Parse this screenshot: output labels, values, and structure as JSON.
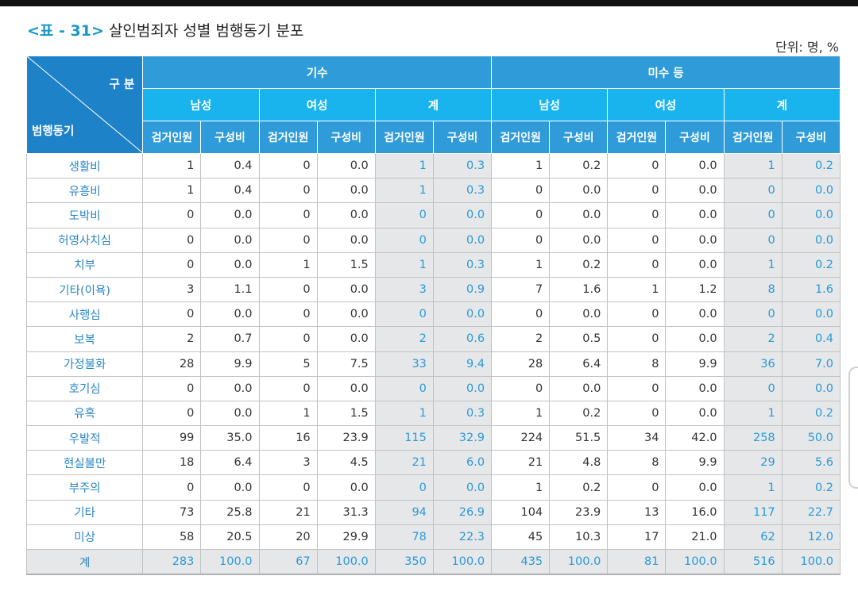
{
  "title": {
    "prefix": "<표 - 31>",
    "text": "살인범죄자 성별 범행동기 분포"
  },
  "unit": "단위: 명, %",
  "header": {
    "corner_top": "구 분",
    "corner_bottom": "범행동기",
    "groups": [
      "기수",
      "미수 등"
    ],
    "genders": [
      "남성",
      "여성",
      "계"
    ],
    "metric_count": "검거인원",
    "metric_ratio": "구성비"
  },
  "rows": [
    {
      "label": "생활비",
      "values": [
        "1",
        "0.4",
        "0",
        "0.0",
        "1",
        "0.3",
        "1",
        "0.2",
        "0",
        "0.0",
        "1",
        "0.2"
      ]
    },
    {
      "label": "유흥비",
      "values": [
        "1",
        "0.4",
        "0",
        "0.0",
        "1",
        "0.3",
        "0",
        "0.0",
        "0",
        "0.0",
        "0",
        "0.0"
      ]
    },
    {
      "label": "도박비",
      "values": [
        "0",
        "0.0",
        "0",
        "0.0",
        "0",
        "0.0",
        "0",
        "0.0",
        "0",
        "0.0",
        "0",
        "0.0"
      ]
    },
    {
      "label": "허영사치심",
      "values": [
        "0",
        "0.0",
        "0",
        "0.0",
        "0",
        "0.0",
        "0",
        "0.0",
        "0",
        "0.0",
        "0",
        "0.0"
      ]
    },
    {
      "label": "치부",
      "values": [
        "0",
        "0.0",
        "1",
        "1.5",
        "1",
        "0.3",
        "1",
        "0.2",
        "0",
        "0.0",
        "1",
        "0.2"
      ]
    },
    {
      "label": "기타(이욕)",
      "values": [
        "3",
        "1.1",
        "0",
        "0.0",
        "3",
        "0.9",
        "7",
        "1.6",
        "1",
        "1.2",
        "8",
        "1.6"
      ]
    },
    {
      "label": "사행심",
      "values": [
        "0",
        "0.0",
        "0",
        "0.0",
        "0",
        "0.0",
        "0",
        "0.0",
        "0",
        "0.0",
        "0",
        "0.0"
      ]
    },
    {
      "label": "보복",
      "values": [
        "2",
        "0.7",
        "0",
        "0.0",
        "2",
        "0.6",
        "2",
        "0.5",
        "0",
        "0.0",
        "2",
        "0.4"
      ]
    },
    {
      "label": "가정불화",
      "values": [
        "28",
        "9.9",
        "5",
        "7.5",
        "33",
        "9.4",
        "28",
        "6.4",
        "8",
        "9.9",
        "36",
        "7.0"
      ]
    },
    {
      "label": "호기심",
      "values": [
        "0",
        "0.0",
        "0",
        "0.0",
        "0",
        "0.0",
        "0",
        "0.0",
        "0",
        "0.0",
        "0",
        "0.0"
      ]
    },
    {
      "label": "유혹",
      "values": [
        "0",
        "0.0",
        "1",
        "1.5",
        "1",
        "0.3",
        "1",
        "0.2",
        "0",
        "0.0",
        "1",
        "0.2"
      ]
    },
    {
      "label": "우발적",
      "values": [
        "99",
        "35.0",
        "16",
        "23.9",
        "115",
        "32.9",
        "224",
        "51.5",
        "34",
        "42.0",
        "258",
        "50.0"
      ]
    },
    {
      "label": "현실불만",
      "values": [
        "18",
        "6.4",
        "3",
        "4.5",
        "21",
        "6.0",
        "21",
        "4.8",
        "8",
        "9.9",
        "29",
        "5.6"
      ]
    },
    {
      "label": "부주의",
      "values": [
        "0",
        "0.0",
        "0",
        "0.0",
        "0",
        "0.0",
        "1",
        "0.2",
        "0",
        "0.0",
        "1",
        "0.2"
      ]
    },
    {
      "label": "기타",
      "values": [
        "73",
        "25.8",
        "21",
        "31.3",
        "94",
        "26.9",
        "104",
        "23.9",
        "13",
        "16.0",
        "117",
        "22.7"
      ]
    },
    {
      "label": "미상",
      "values": [
        "58",
        "20.5",
        "20",
        "29.9",
        "78",
        "22.3",
        "45",
        "10.3",
        "17",
        "21.0",
        "62",
        "12.0"
      ]
    }
  ],
  "total": {
    "label": "계",
    "values": [
      "283",
      "100.0",
      "67",
      "100.0",
      "350",
      "100.0",
      "435",
      "100.0",
      "81",
      "100.0",
      "516",
      "100.0"
    ]
  }
}
